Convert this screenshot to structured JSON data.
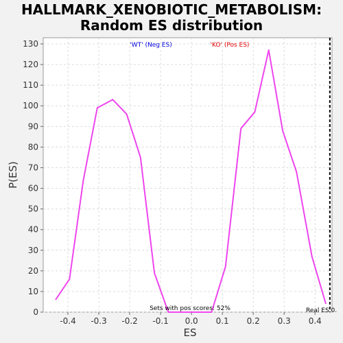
{
  "chart_data": {
    "type": "line",
    "title": [
      "HALLMARK_XENOBIOTIC_METABOLISM:",
      "Random ES distribution"
    ],
    "xlabel": "ES",
    "ylabel": "P(ES)",
    "xlim": [
      -0.48,
      0.455
    ],
    "ylim": [
      0,
      133
    ],
    "xticks": [
      -0.4,
      -0.3,
      -0.2,
      -0.1,
      0.0,
      0.1,
      0.2,
      0.3,
      0.4
    ],
    "xtick_labels": [
      "-0.4",
      "-0.3",
      "-0.2",
      "-0.1",
      "0.0",
      "0.1",
      "0.2",
      "0.3",
      "0.4"
    ],
    "yticks": [
      0,
      10,
      20,
      30,
      40,
      50,
      60,
      70,
      80,
      90,
      100,
      110,
      120,
      130
    ],
    "ytick_labels": [
      "0",
      "10",
      "20",
      "30",
      "40",
      "50",
      "60",
      "70",
      "80",
      "90",
      "100",
      "110",
      "120",
      "130"
    ],
    "grid": true,
    "series": [
      {
        "name": "Random ES distribution",
        "color": "#ee44ee",
        "x": [
          -0.44,
          -0.395,
          -0.35,
          -0.305,
          -0.255,
          -0.21,
          -0.165,
          -0.12,
          -0.075,
          -0.03,
          0.015,
          0.065,
          0.11,
          0.16,
          0.205,
          0.25,
          0.295,
          0.34,
          0.39,
          0.435
        ],
        "y": [
          6,
          16,
          64,
          99,
          103,
          96,
          75,
          19,
          0,
          0,
          0,
          0,
          22,
          89,
          97,
          127,
          88,
          68,
          27,
          4
        ]
      }
    ],
    "real_es": {
      "x": 0.448,
      "label": "Real ES 0.",
      "color": "#000000"
    },
    "legend": [
      {
        "label": "'WT' (Neg ES)",
        "color": "#0000dd"
      },
      {
        "label": "'KO' (Pos ES)",
        "color": "#dd0000"
      }
    ],
    "annotation": "Sets with pos scores: 52%"
  }
}
